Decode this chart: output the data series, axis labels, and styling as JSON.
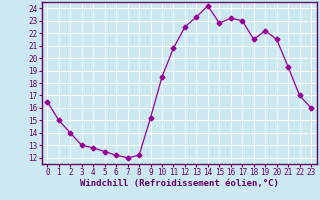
{
  "x": [
    0,
    1,
    2,
    3,
    4,
    5,
    6,
    7,
    8,
    9,
    10,
    11,
    12,
    13,
    14,
    15,
    16,
    17,
    18,
    19,
    20,
    21,
    22,
    23
  ],
  "y": [
    16.5,
    15.0,
    14.0,
    13.0,
    12.8,
    12.5,
    12.2,
    12.0,
    12.2,
    15.2,
    18.5,
    20.8,
    22.5,
    23.3,
    24.2,
    22.8,
    23.2,
    23.0,
    21.5,
    22.2,
    21.5,
    19.3,
    17.0,
    16.0
  ],
  "line_color": "#990099",
  "marker": "D",
  "marker_size": 2.5,
  "bg_color": "#cce8f0",
  "grid_color": "#ffffff",
  "xlabel": "Windchill (Refroidissement éolien,°C)",
  "xlabel_color": "#660066",
  "tick_color": "#660066",
  "axis_color": "#660066",
  "xlim": [
    -0.5,
    23.5
  ],
  "ylim": [
    11.5,
    24.5
  ],
  "yticks": [
    12,
    13,
    14,
    15,
    16,
    17,
    18,
    19,
    20,
    21,
    22,
    23,
    24
  ],
  "xticks": [
    0,
    1,
    2,
    3,
    4,
    5,
    6,
    7,
    8,
    9,
    10,
    11,
    12,
    13,
    14,
    15,
    16,
    17,
    18,
    19,
    20,
    21,
    22,
    23
  ],
  "tick_fontsize": 5.5,
  "xlabel_fontsize": 6.5
}
